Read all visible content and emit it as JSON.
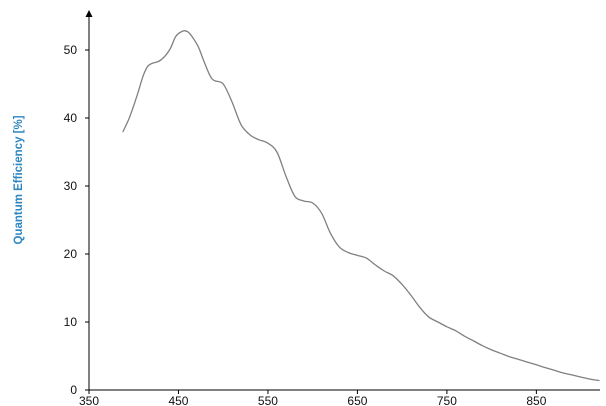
{
  "chart_data": {
    "type": "line",
    "title": "",
    "xlabel": "",
    "ylabel": "Quantum Efficiency [%]",
    "xlim": [
      350,
      920
    ],
    "ylim": [
      0,
      55
    ],
    "x_ticks": [
      "350",
      "450",
      "550",
      "650",
      "750",
      "850"
    ],
    "y_ticks": [
      "0",
      "10",
      "20",
      "30",
      "40",
      "50"
    ],
    "grid": false,
    "legend": "none",
    "colors": {
      "line": "#808080",
      "axis": "#000000",
      "ylabel": "#2e86c1"
    },
    "series": [
      {
        "x": [
          388,
          395,
          403,
          410,
          415,
          420,
          430,
          440,
          447,
          455,
          460,
          465,
          472,
          478,
          485,
          490,
          500,
          510,
          520,
          530,
          540,
          550,
          560,
          570,
          580,
          590,
          600,
          610,
          620,
          630,
          640,
          650,
          660,
          670,
          680,
          690,
          700,
          710,
          720,
          730,
          740,
          750,
          760,
          770,
          780,
          790,
          800,
          810,
          820,
          830,
          840,
          850,
          860,
          870,
          880,
          890,
          900,
          910,
          920
        ],
        "y": [
          38,
          40,
          43,
          46,
          47.5,
          48,
          48.5,
          50,
          52,
          52.8,
          52.7,
          52,
          50.5,
          48.5,
          46.3,
          45.5,
          45,
          42.3,
          39,
          37.5,
          36.8,
          36.3,
          35,
          31.5,
          28.5,
          27.8,
          27.5,
          26,
          23,
          21,
          20.2,
          19.8,
          19.4,
          18.4,
          17.5,
          16.8,
          15.5,
          13.9,
          12.1,
          10.7,
          10,
          9.3,
          8.7,
          7.9,
          7.2,
          6.5,
          5.9,
          5.4,
          4.9,
          4.5,
          4.1,
          3.7,
          3.3,
          2.9,
          2.5,
          2.2,
          1.9,
          1.6,
          1.4
        ]
      }
    ]
  }
}
